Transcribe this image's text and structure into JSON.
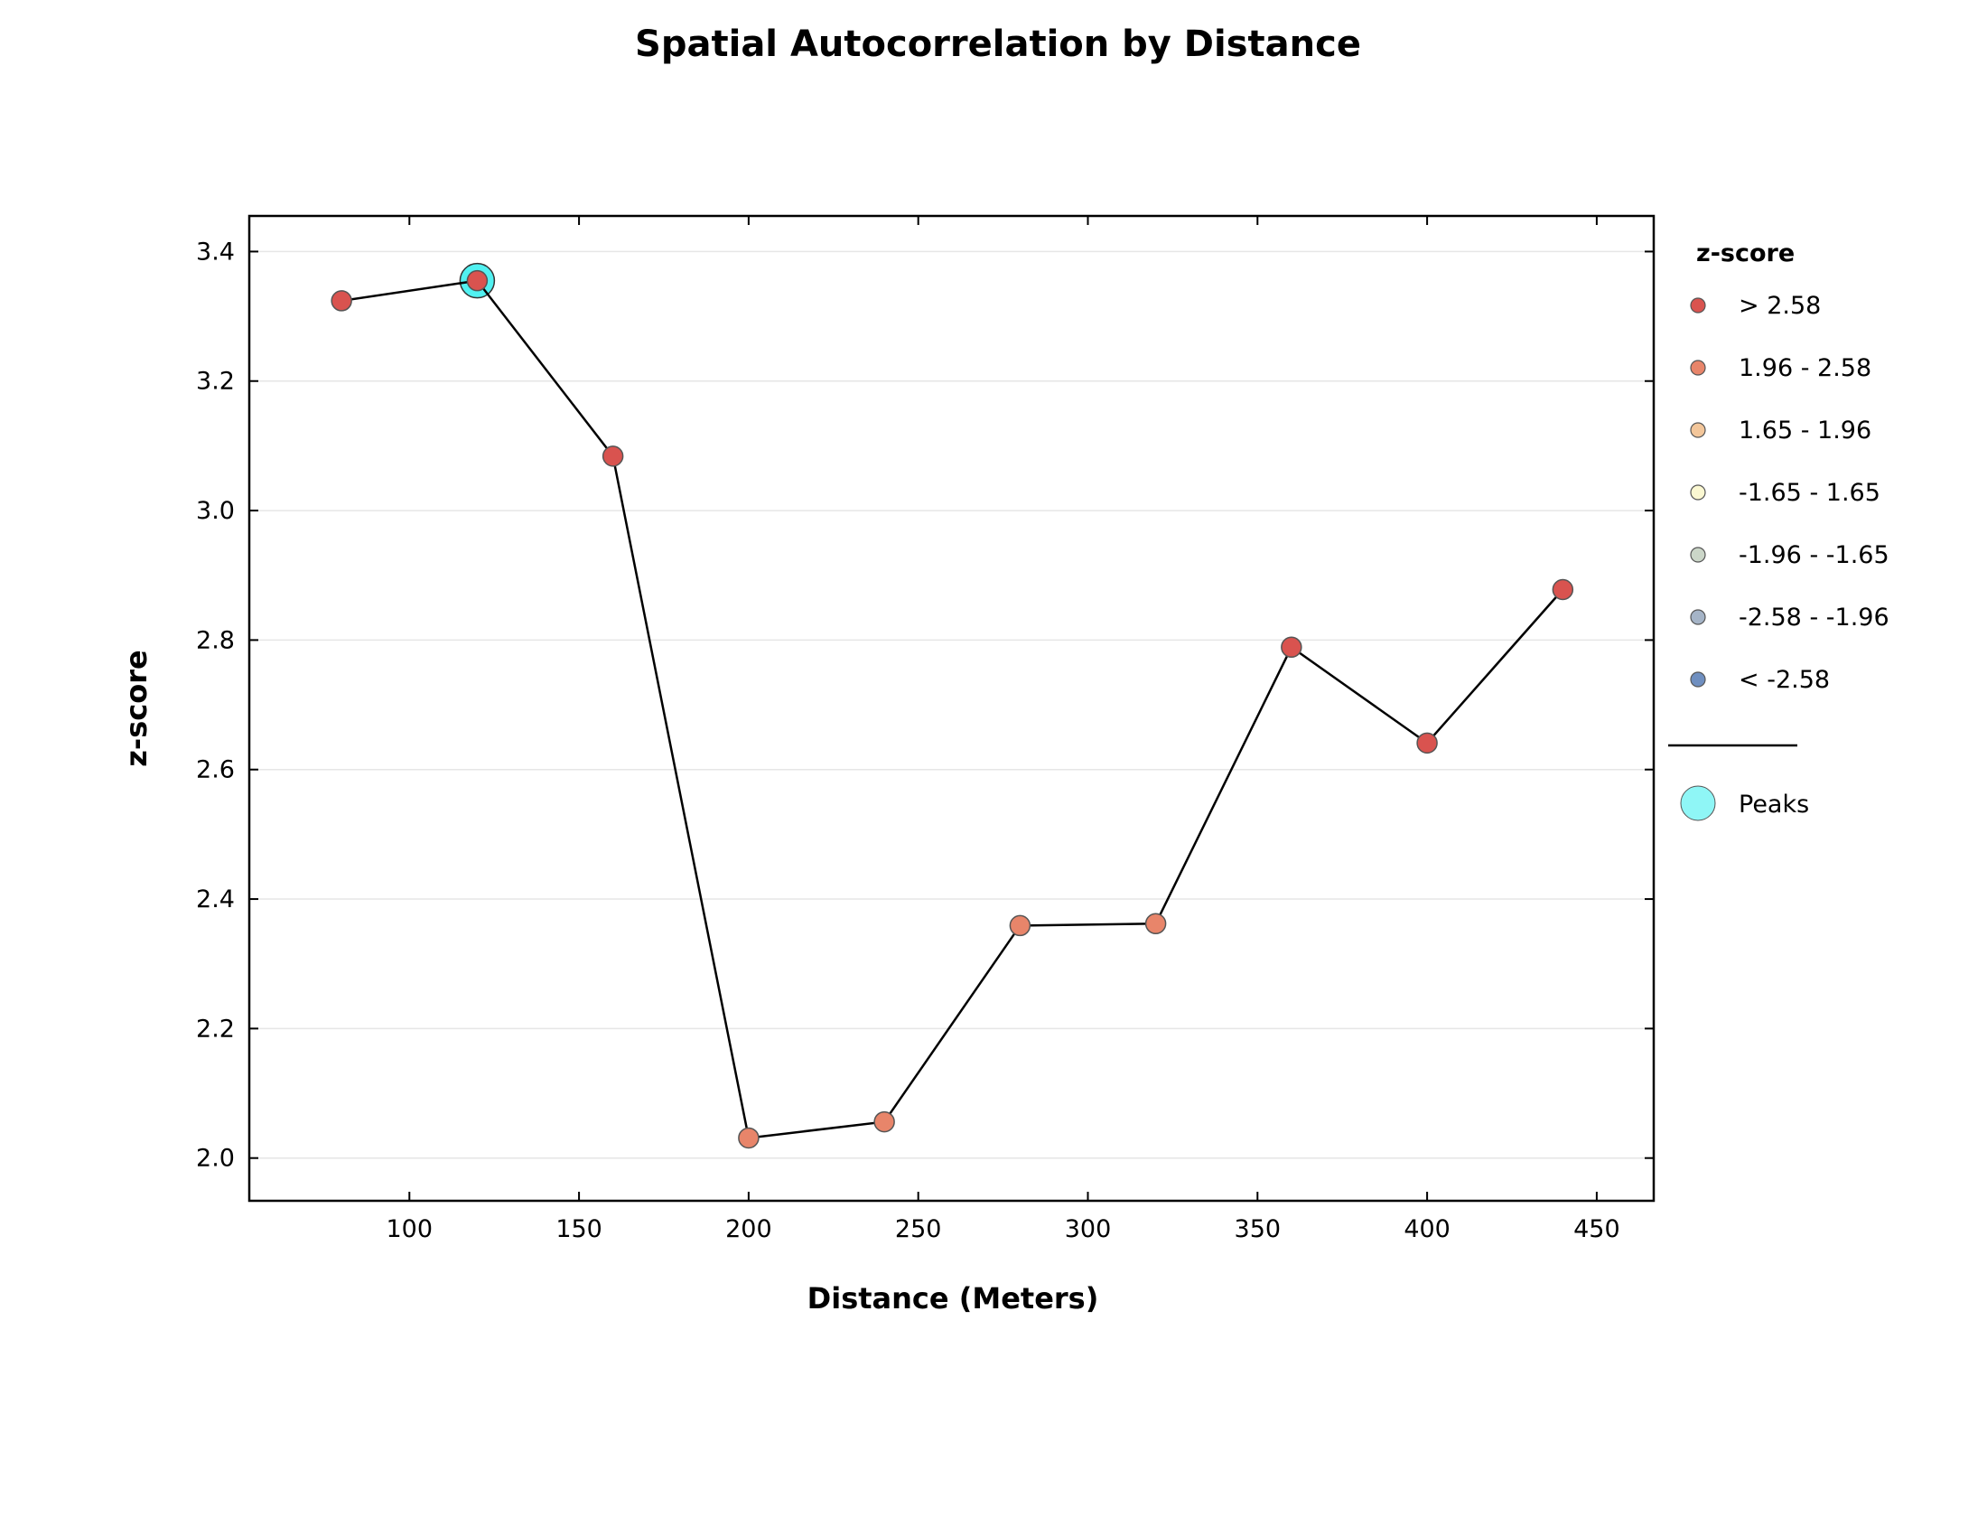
{
  "chart_data": {
    "type": "line",
    "title": "Spatial Autocorrelation by Distance",
    "xlabel": "Distance (Meters)",
    "ylabel": "z-score",
    "xlim": [
      52.8,
      466.8
    ],
    "ylim": [
      1.934,
      3.455
    ],
    "x_ticks": [
      100,
      150,
      200,
      250,
      300,
      350,
      400,
      450
    ],
    "x_tick_labels": [
      "100",
      "150",
      "200",
      "250",
      "300",
      "350",
      "400",
      "450"
    ],
    "y_ticks": [
      2.0,
      2.2,
      2.4,
      2.6,
      2.8,
      3.0,
      3.2,
      3.4
    ],
    "y_tick_labels": [
      "2.0",
      "2.2",
      "2.4",
      "2.6",
      "2.8",
      "3.0",
      "3.2",
      "3.4"
    ],
    "grid": "horizontal",
    "legend_placement": "right, outside plot",
    "series": [
      {
        "type": "line",
        "color": "#000000",
        "x": [
          80,
          120,
          160,
          200,
          240,
          280,
          320,
          360,
          400,
          440
        ],
        "y": [
          3.324,
          3.355,
          3.084,
          2.031,
          2.056,
          2.359,
          2.362,
          2.789,
          2.641,
          2.878
        ],
        "point_classes": [
          "> 2.58",
          "> 2.58",
          "> 2.58",
          "1.96 - 2.58",
          "1.96 - 2.58",
          "1.96 - 2.58",
          "1.96 - 2.58",
          "> 2.58",
          "> 2.58",
          "> 2.58"
        ]
      }
    ],
    "peaks": {
      "x": [
        120
      ],
      "y": [
        3.355
      ],
      "color": "#33eeee"
    },
    "legend": {
      "title": "z-score",
      "items": [
        {
          "label": "> 2.58",
          "color": "#d9534f"
        },
        {
          "label": "1.96 - 2.58",
          "color": "#e8856a"
        },
        {
          "label": "1.65 - 1.96",
          "color": "#f3c69a"
        },
        {
          "label": "-1.65 - 1.65",
          "color": "#fbf8d2"
        },
        {
          "label": "-1.96 - -1.65",
          "color": "#cbd6c8"
        },
        {
          "label": "-2.58 - -1.96",
          "color": "#a5b4c7"
        },
        {
          "label": "< -2.58",
          "color": "#6f8fc0"
        }
      ],
      "peaks_label": "Peaks"
    }
  }
}
